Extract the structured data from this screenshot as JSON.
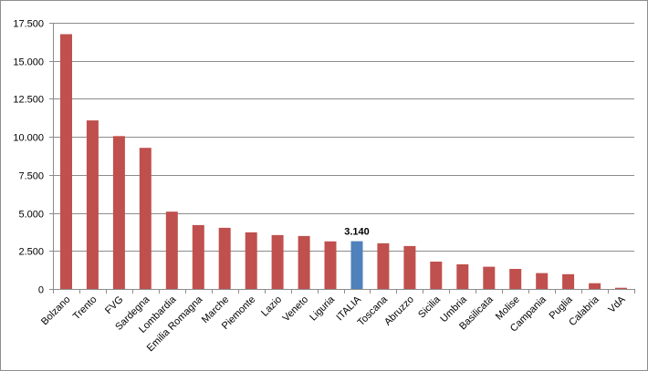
{
  "chart_data": {
    "type": "bar",
    "title": "",
    "xlabel": "",
    "ylabel": "",
    "categories": [
      "Bolzano",
      "Trento",
      "FVG",
      "Sardegna",
      "Lombardia",
      "Emilia Romagna",
      "Marche",
      "Piemonte",
      "Lazio",
      "Veneto",
      "Liguria",
      "ITALIA",
      "Toscana",
      "Abruzzo",
      "Sicilia",
      "Umbria",
      "Basilicata",
      "Molise",
      "Campania",
      "Puglia",
      "Calabria",
      "VdA"
    ],
    "values": [
      16750,
      11080,
      10050,
      9280,
      5080,
      4200,
      4020,
      3720,
      3540,
      3480,
      3130,
      3140,
      3000,
      2820,
      1800,
      1620,
      1460,
      1320,
      1040,
      970,
      380,
      80
    ],
    "ylim": [
      0,
      17500
    ],
    "yticks": [
      0,
      2500,
      5000,
      7500,
      10000,
      12500,
      15000,
      17500
    ],
    "ytick_labels": [
      "0",
      "2.500",
      "5.000",
      "7.500",
      "10.000",
      "12.500",
      "15.000",
      "17.500"
    ],
    "grid": true,
    "legend": "none",
    "colors": {
      "default": "#c0504d",
      "highlight": "#4f81bd",
      "grid": "#8c8c8c",
      "axis": "#8c8c8c"
    },
    "highlight_category": "ITALIA",
    "data_labels": [
      {
        "category": "ITALIA",
        "text": "3.140"
      }
    ]
  }
}
